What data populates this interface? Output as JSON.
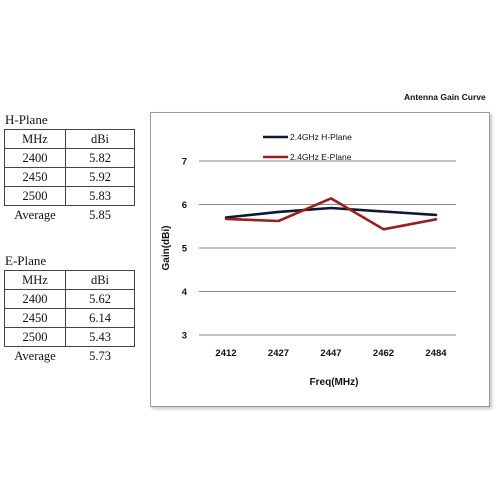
{
  "h_plane": {
    "title": "H-Plane",
    "headers": [
      "MHz",
      "dBi"
    ],
    "rows": [
      [
        "2400",
        "5.82"
      ],
      [
        "2450",
        "5.92"
      ],
      [
        "2500",
        "5.83"
      ]
    ],
    "average_label": "Average",
    "average_value": "5.85"
  },
  "e_plane": {
    "title": "E-Plane",
    "headers": [
      "MHz",
      "dBi"
    ],
    "rows": [
      [
        "2400",
        "5.62"
      ],
      [
        "2450",
        "6.14"
      ],
      [
        "2500",
        "5.43"
      ]
    ],
    "average_label": "Average",
    "average_value": "5.73"
  },
  "chart_data": {
    "type": "line",
    "title": "Antenna Gain Curve",
    "xlabel": "Freq(MHz)",
    "ylabel": "Gain(dBi)",
    "categories": [
      "2412",
      "2427",
      "2447",
      "2462",
      "2484"
    ],
    "ylim": [
      3,
      7
    ],
    "yticks": [
      3,
      4,
      5,
      6,
      7
    ],
    "grid": true,
    "legend_position": "top-left",
    "series": [
      {
        "name": "2.4GHz H-Plane",
        "color": "#0b1a33",
        "values": [
          5.7,
          5.83,
          5.92,
          5.84,
          5.76
        ]
      },
      {
        "name": "2.4GHz E-Plane",
        "color": "#9c1f1f",
        "values": [
          5.67,
          5.62,
          6.14,
          5.43,
          5.66
        ]
      }
    ]
  }
}
